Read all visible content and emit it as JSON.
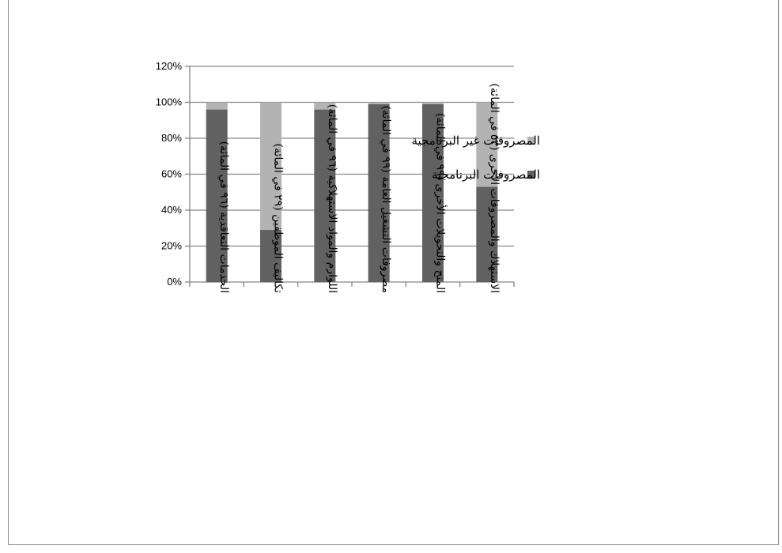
{
  "chart_data": {
    "type": "bar",
    "stacked": true,
    "categories": [
      "الخدمات التعاقدية (٩٦ في المائة)",
      "تكاليف الموظفين (٢٩ في المائة)",
      "اللوازم والمواد الاستهلاكية (٩٦ في المائة)",
      "مصروفات التشغيل العامة (٩٩ في المائة)",
      "المنح والتحويلات الأخرى (٩٩ في المائة)",
      "الاستهلاك والمصروفات الأخرى (٥٣ في المائة)"
    ],
    "series": [
      {
        "name": "المصروفات البرنامجية",
        "values": [
          96,
          29,
          96,
          99,
          99,
          53
        ],
        "color": "#616161"
      },
      {
        "name": "المصروفات غير البرنامجية",
        "values": [
          4,
          71,
          4,
          1,
          1,
          47
        ],
        "color": "#b3b3b3"
      }
    ],
    "ylim": [
      0,
      120
    ],
    "yticks": [
      "0%",
      "20%",
      "40%",
      "60%",
      "80%",
      "100%",
      "120%"
    ],
    "grid": true,
    "legend_position": "right"
  }
}
